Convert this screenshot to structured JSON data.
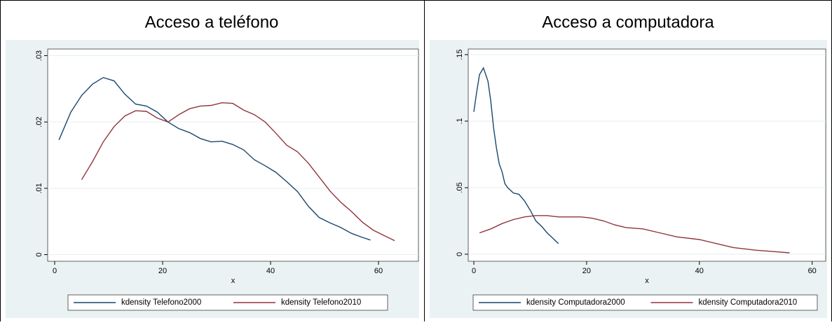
{
  "chart_data": [
    {
      "type": "line",
      "title": "Acceso a teléfono",
      "xlabel": "x",
      "xlim": [
        -1.3,
        67.4
      ],
      "ylim": [
        -0.001,
        0.031
      ],
      "xticks": [
        0,
        20,
        40,
        60
      ],
      "yticks": [
        0,
        {
          "value": 0.01,
          "label": ".01"
        },
        {
          "value": 0.02,
          "label": ".02"
        },
        {
          "value": 0.03,
          "label": ".03"
        }
      ],
      "grid": true,
      "legend": "bottom",
      "series": [
        {
          "name": "kdensity Telefono2000",
          "color": "#1a476f",
          "x": [
            0.8,
            3,
            5,
            7,
            9,
            11,
            13,
            15,
            17,
            19,
            21,
            23,
            25,
            27,
            29,
            31,
            33,
            35,
            37,
            39,
            41,
            43,
            45,
            47,
            49,
            51,
            53,
            55,
            57,
            58.5
          ],
          "values": [
            0.0173,
            0.0215,
            0.024,
            0.0257,
            0.0267,
            0.0262,
            0.0242,
            0.0227,
            0.0224,
            0.0215,
            0.02,
            0.019,
            0.0184,
            0.0175,
            0.017,
            0.0171,
            0.0166,
            0.0158,
            0.0143,
            0.0134,
            0.0124,
            0.011,
            0.0095,
            0.0073,
            0.0056,
            0.0048,
            0.0041,
            0.0032,
            0.0026,
            0.0022
          ]
        },
        {
          "name": "kdensity Telefono2010",
          "color": "#90353b",
          "x": [
            5,
            7,
            9,
            11,
            13,
            15,
            17,
            19,
            21,
            23,
            25,
            27,
            29,
            31,
            33,
            35,
            37,
            39,
            41,
            43,
            45,
            47,
            49,
            51,
            53,
            55,
            57,
            59,
            61,
            63
          ],
          "values": [
            0.0113,
            0.014,
            0.017,
            0.0193,
            0.0209,
            0.0217,
            0.0216,
            0.0206,
            0.02,
            0.0211,
            0.022,
            0.0224,
            0.0225,
            0.0229,
            0.0228,
            0.0218,
            0.0211,
            0.02,
            0.0183,
            0.0165,
            0.0155,
            0.0138,
            0.0117,
            0.0096,
            0.0079,
            0.0065,
            0.0049,
            0.0037,
            0.0029,
            0.0021
          ]
        }
      ]
    },
    {
      "type": "line",
      "title": "Acceso a computadora",
      "xlabel": "x",
      "xlim": [
        -1.0,
        62.4
      ],
      "ylim": [
        -0.0053,
        0.1542
      ],
      "xticks": [
        0,
        20,
        40,
        60
      ],
      "yticks": [
        0,
        {
          "value": 0.05,
          "label": ".05"
        },
        {
          "value": 0.1,
          "label": ".1"
        },
        {
          "value": 0.15,
          "label": ".15"
        }
      ],
      "grid": true,
      "legend": "bottom",
      "series": [
        {
          "name": "kdensity Computadora2000",
          "color": "#1a476f",
          "x": [
            0,
            0.5,
            1,
            1.7,
            2.5,
            3,
            3.5,
            4,
            4.5,
            5,
            5.5,
            6,
            7,
            8,
            9,
            10,
            11,
            12,
            13,
            14,
            15
          ],
          "values": [
            0.107,
            0.122,
            0.135,
            0.14,
            0.13,
            0.115,
            0.095,
            0.08,
            0.068,
            0.062,
            0.053,
            0.05,
            0.046,
            0.045,
            0.04,
            0.033,
            0.025,
            0.021,
            0.016,
            0.012,
            0.008
          ]
        },
        {
          "name": "kdensity Computadora2010",
          "color": "#90353b",
          "x": [
            1,
            3,
            5,
            7,
            9,
            11,
            13,
            15,
            17,
            19,
            21,
            23,
            25,
            27,
            30,
            33,
            36,
            40,
            43,
            46,
            50,
            53,
            56
          ],
          "values": [
            0.016,
            0.019,
            0.023,
            0.026,
            0.028,
            0.029,
            0.029,
            0.028,
            0.028,
            0.028,
            0.027,
            0.025,
            0.022,
            0.02,
            0.019,
            0.016,
            0.013,
            0.011,
            0.008,
            0.005,
            0.003,
            0.002,
            0.001
          ]
        }
      ]
    }
  ]
}
